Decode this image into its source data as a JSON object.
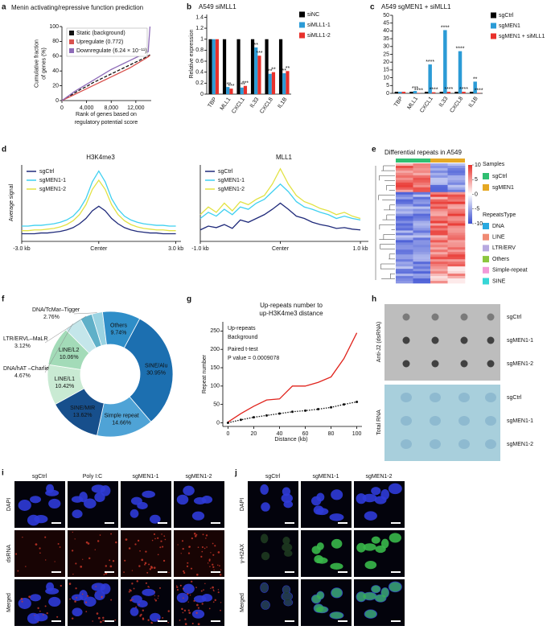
{
  "labels": [
    "a",
    "b",
    "c",
    "d",
    "e",
    "f",
    "g",
    "h",
    "i",
    "j"
  ],
  "chart_data": [
    {
      "type": "line",
      "title": "Menin activating/repressive function prediction",
      "xlabel": [
        "Rank of genes based on",
        "regulatory potential score"
      ],
      "ylabel": [
        "Cumulative fraction",
        "of genes (%)"
      ],
      "x": [
        0,
        1000,
        2000,
        3000,
        4000,
        5000,
        6000,
        7000,
        8000,
        9000,
        10000,
        11000,
        12000,
        13000,
        14000,
        14300
      ],
      "xlim": [
        0,
        14500
      ],
      "xticks": [
        0,
        {
          "value": 4000,
          "label": "4,000"
        },
        {
          "value": 8000,
          "label": "8,000"
        },
        {
          "value": 12000,
          "label": "12,000"
        }
      ],
      "ylim": [
        0,
        100
      ],
      "yticks": [
        0,
        20,
        40,
        60,
        80,
        100
      ],
      "legend": "upper left",
      "legend_style": "box",
      "series": [
        {
          "name": "Static (background)",
          "color": "#111111",
          "style": "dashed",
          "values": [
            0,
            5,
            10,
            15,
            19,
            24,
            28,
            32,
            36,
            40,
            44,
            48,
            52,
            56,
            60,
            62
          ]
        },
        {
          "name": "Upregulate (0.772)",
          "color": "#d9534f",
          "values": [
            0,
            4,
            8,
            12,
            16,
            20,
            24,
            28,
            32,
            36,
            40,
            44,
            49,
            54,
            59,
            61
          ]
        },
        {
          "name": "Downregulate (6.24 × 10⁻¹¹)",
          "color": "#8e6bb8",
          "values": [
            0,
            6,
            12,
            17,
            22,
            27,
            32,
            37,
            42,
            46,
            50,
            54,
            58,
            62,
            66,
            100
          ]
        }
      ]
    },
    {
      "type": "bar",
      "title": "A549 siMLL1",
      "ylabel": "Relative expression",
      "categories": [
        "TBP",
        "MLL1",
        "CXCL1",
        "IL33",
        "CXCL8",
        "IL1B"
      ],
      "ylim": [
        0,
        1.45
      ],
      "yticks": [
        0,
        0.2,
        0.4,
        0.6,
        0.8,
        1,
        1.2,
        1.4
      ],
      "legend": "right",
      "series": [
        {
          "name": "siNC",
          "color": "#000000",
          "values": [
            1,
            1,
            1,
            1,
            1,
            1
          ]
        },
        {
          "name": "siMLL1-1",
          "color": "#2b9bd6",
          "values": [
            1,
            0.13,
            0.12,
            0.85,
            0.37,
            0.38
          ],
          "significance": [
            null,
            "***",
            "***",
            "**",
            "**",
            "**"
          ]
        },
        {
          "name": "siMLL1-2",
          "color": "#e8312b",
          "values": [
            1,
            0.1,
            0.15,
            0.7,
            0.4,
            0.42
          ],
          "significance": [
            null,
            "***",
            "***",
            "***",
            "**",
            "**"
          ]
        }
      ]
    },
    {
      "type": "bar",
      "title": "A549 sgMEN1 + siMLL1",
      "categories": [
        "TBP",
        "MLL1",
        "CXCL1",
        "IL33",
        "CXCL8",
        "IL1B"
      ],
      "ylim": [
        0,
        50
      ],
      "yticks": [
        0,
        5,
        10,
        15,
        20,
        25,
        30,
        35,
        40,
        45,
        50
      ],
      "legend": "right",
      "series": [
        {
          "name": "sgCtrl",
          "color": "#000000",
          "values": [
            1,
            1,
            1,
            1,
            1,
            1
          ]
        },
        {
          "name": "sgMEN1",
          "color": "#2b9bd6",
          "values": [
            1,
            1.5,
            18.5,
            40.5,
            27,
            7.5
          ],
          "significance": [
            null,
            "***",
            "****",
            "****",
            "****",
            "**"
          ]
        },
        {
          "name": "sgMEN1 + siMLL1",
          "color": "#e8312b",
          "values": [
            1,
            0.3,
            0.7,
            1,
            1,
            0.3
          ],
          "significance": [
            null,
            "****",
            "****",
            "****",
            "****",
            "****"
          ]
        }
      ]
    },
    {
      "type": "line",
      "title": "H3K4me3",
      "ylabel": "Average signal",
      "x": [
        -3,
        -2.75,
        -2.5,
        -2.25,
        -2,
        -1.75,
        -1.5,
        -1.25,
        -1,
        -0.75,
        -0.5,
        -0.25,
        0,
        0.25,
        0.5,
        0.75,
        1,
        1.25,
        1.5,
        1.75,
        2,
        2.25,
        2.5,
        2.75,
        3
      ],
      "xlim": [
        -3,
        3.2
      ],
      "xticks": [
        {
          "value": -3,
          "label": "-3.0 kb"
        },
        {
          "value": 0,
          "label": "Center"
        },
        {
          "value": 3,
          "label": "3.0 kb"
        }
      ],
      "ylim": [
        0,
        1
      ],
      "legend": "upper left",
      "legend_style": "line",
      "series": [
        {
          "name": "sgCtrl",
          "color": "#1f2a7a",
          "values": [
            0.1,
            0.1,
            0.1,
            0.11,
            0.11,
            0.12,
            0.13,
            0.15,
            0.18,
            0.23,
            0.3,
            0.4,
            0.46,
            0.4,
            0.3,
            0.23,
            0.18,
            0.15,
            0.13,
            0.12,
            0.11,
            0.11,
            0.1,
            0.1,
            0.1
          ]
        },
        {
          "name": "sgMEN1-1",
          "color": "#3fd0f0",
          "values": [
            0.2,
            0.2,
            0.21,
            0.21,
            0.22,
            0.23,
            0.25,
            0.28,
            0.33,
            0.42,
            0.56,
            0.78,
            0.92,
            0.78,
            0.56,
            0.42,
            0.33,
            0.28,
            0.25,
            0.23,
            0.22,
            0.21,
            0.21,
            0.2,
            0.2
          ]
        },
        {
          "name": "sgMEN1-2",
          "color": "#e2e244",
          "values": [
            0.14,
            0.14,
            0.15,
            0.15,
            0.16,
            0.17,
            0.19,
            0.22,
            0.27,
            0.35,
            0.48,
            0.68,
            0.8,
            0.68,
            0.48,
            0.35,
            0.27,
            0.22,
            0.19,
            0.17,
            0.16,
            0.15,
            0.15,
            0.14,
            0.14
          ]
        }
      ]
    },
    {
      "type": "line",
      "title": "MLL1",
      "x": [
        -1,
        -0.9,
        -0.8,
        -0.7,
        -0.6,
        -0.5,
        -0.4,
        -0.3,
        -0.2,
        -0.1,
        0,
        0.1,
        0.2,
        0.3,
        0.4,
        0.5,
        0.6,
        0.7,
        0.8,
        0.9,
        1
      ],
      "xlim": [
        -1,
        1.1
      ],
      "xticks": [
        {
          "value": -1,
          "label": "-1.0 kb"
        },
        {
          "value": 0,
          "label": "Center"
        },
        {
          "value": 1,
          "label": "1.0 kb"
        }
      ],
      "ylim": [
        0,
        1
      ],
      "legend": "upper left",
      "legend_style": "line",
      "series": [
        {
          "name": "sgCtrl",
          "color": "#1f2a7a",
          "values": [
            0.15,
            0.2,
            0.18,
            0.22,
            0.17,
            0.28,
            0.25,
            0.3,
            0.35,
            0.42,
            0.5,
            0.42,
            0.33,
            0.3,
            0.25,
            0.22,
            0.2,
            0.17,
            0.18,
            0.16,
            0.15
          ]
        },
        {
          "name": "sgMEN1-1",
          "color": "#3fd0f0",
          "values": [
            0.3,
            0.38,
            0.33,
            0.42,
            0.35,
            0.45,
            0.42,
            0.5,
            0.55,
            0.65,
            0.75,
            0.65,
            0.52,
            0.45,
            0.42,
            0.38,
            0.35,
            0.3,
            0.33,
            0.3,
            0.28
          ]
        },
        {
          "name": "sgMEN1-2",
          "color": "#e2e244",
          "values": [
            0.35,
            0.45,
            0.38,
            0.5,
            0.4,
            0.52,
            0.48,
            0.55,
            0.6,
            0.75,
            0.95,
            0.75,
            0.6,
            0.52,
            0.48,
            0.43,
            0.4,
            0.35,
            0.38,
            0.33,
            0.3
          ]
        }
      ]
    },
    {
      "type": "pie",
      "donut": true,
      "categories": [
        "SINE/Alu",
        "Simple repeat",
        "SINE/MIR",
        "LINE/L1",
        "LINE/L2",
        "DNA/hAT –Charlie",
        "LTR/ERVL–MaLR",
        "DNA/TcMar–Tigger",
        "Others"
      ],
      "values": [
        30.95,
        14.66,
        13.62,
        10.42,
        10.06,
        4.67,
        3.12,
        2.76,
        9.74
      ],
      "value_labels": [
        "30.95%",
        "14.66%",
        "13.62%",
        "10.42%",
        "10.06%",
        "4.67%",
        "3.12%",
        "2.76%",
        "9.74%"
      ],
      "colors": [
        "#1c6fb0",
        "#4fa3d6",
        "#174f8c",
        "#c9ead3",
        "#a3dbb8",
        "#c4e6ea",
        "#5fb0c8",
        "#9ad3e2",
        "#2f8ec8"
      ]
    },
    {
      "type": "line",
      "title": [
        "Up-repeats number to",
        "up-H3K4me3 distance"
      ],
      "xlabel": "Distance (kb)",
      "ylabel": "Repeat number",
      "x": [
        0,
        10,
        20,
        30,
        40,
        50,
        60,
        70,
        80,
        90,
        100
      ],
      "xlim": [
        -4,
        104
      ],
      "xticks": [
        0,
        20,
        40,
        60,
        80,
        100
      ],
      "ylim": [
        -10,
        275
      ],
      "yticks": [
        0,
        50,
        100,
        150,
        200,
        250
      ],
      "legend": "upper left",
      "legend_style": "text",
      "annotations": [
        "Paired t-test",
        "P value = 0.0009078"
      ],
      "series": [
        {
          "name": "Up-repeats",
          "color": "#e0231c",
          "values": [
            2,
            25,
            45,
            62,
            65,
            100,
            100,
            110,
            125,
            175,
            245
          ]
        },
        {
          "name": "Background",
          "color": "#111111",
          "style": "dotted",
          "marker": "circle",
          "values": [
            0,
            8,
            15,
            20,
            25,
            30,
            33,
            37,
            42,
            50,
            57
          ]
        }
      ]
    }
  ],
  "heatmap": {
    "title": "Differential repeats in A549",
    "colorbar_ticks": [
      10,
      5,
      0,
      -5,
      -10
    ],
    "samples_title": "Samples",
    "samples": [
      {
        "name": "sgCtrl",
        "color": "#2fbf71"
      },
      {
        "name": "sgMEN1",
        "color": "#e5a823"
      }
    ],
    "types_title": "RepeatsType",
    "types": [
      {
        "name": "DNA",
        "color": "#29a9e0"
      },
      {
        "name": "LINE",
        "color": "#f08a73"
      },
      {
        "name": "LTR/ERV",
        "color": "#b7a9e0"
      },
      {
        "name": "Others",
        "color": "#8cc63f"
      },
      {
        "name": "Simple-repeat",
        "color": "#f29ad8"
      },
      {
        "name": "SINE",
        "color": "#37d6d6"
      }
    ]
  },
  "dot_blot": {
    "panels": [
      "Anti-J2 (dsRNA)",
      "Total RNA"
    ],
    "rows": [
      "sgCtrl",
      "sgMEN1-1",
      "sgMEN1-2"
    ]
  },
  "microscopy_i": {
    "columns": [
      "sgCtrl",
      "Poly I:C",
      "sgMEN1-1",
      "sgMEN1-2"
    ],
    "rows": [
      "DAPI",
      "dsRNA",
      "Merged"
    ]
  },
  "microscopy_j": {
    "columns": [
      "sgCtrl",
      "sgMEN1-1",
      "sgMEN1-2"
    ],
    "rows": [
      "DAPI",
      "γ-H2AX",
      "Merged"
    ]
  }
}
